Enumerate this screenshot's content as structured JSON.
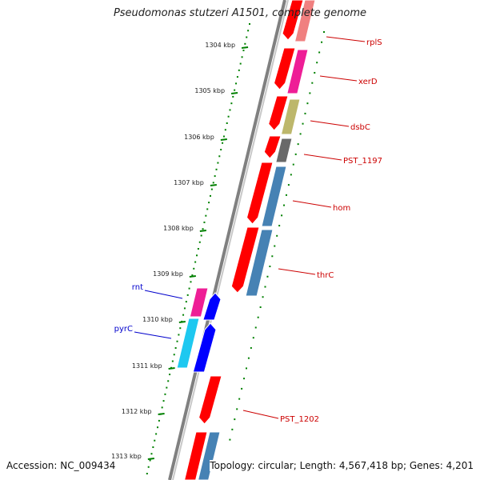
{
  "title": "Pseudomonas stutzeri A1501, complete genome",
  "footer": {
    "accession": "Accession: NC_009434",
    "summary": "Topology: circular; Length: 4,567,418 bp; Genes: 4,201"
  },
  "scale_labels": [
    "1304 kbp",
    "1305 kbp",
    "1306 kbp",
    "1307 kbp",
    "1308 kbp",
    "1309 kbp",
    "1310 kbp",
    "1311 kbp",
    "1312 kbp",
    "1313 kbp"
  ],
  "right_labels": [
    "rplS",
    "xerD",
    "dsbC",
    "PST_1197",
    "hom",
    "thrC",
    "PST_1202"
  ],
  "left_labels": [
    "rnt",
    "pyrC"
  ],
  "colors": {
    "backbone": "#808080",
    "scale": "#008000",
    "right_label": "#cc0000",
    "left_label": "#0000cc",
    "red": "#ff0000",
    "pink_light": "#f08080",
    "magenta": "#ee1e96",
    "olive": "#bdb76b",
    "dark_gray": "#696969",
    "steel_blue": "#4682b4",
    "cyan": "#1ec8f0",
    "blue": "#0000ff"
  }
}
